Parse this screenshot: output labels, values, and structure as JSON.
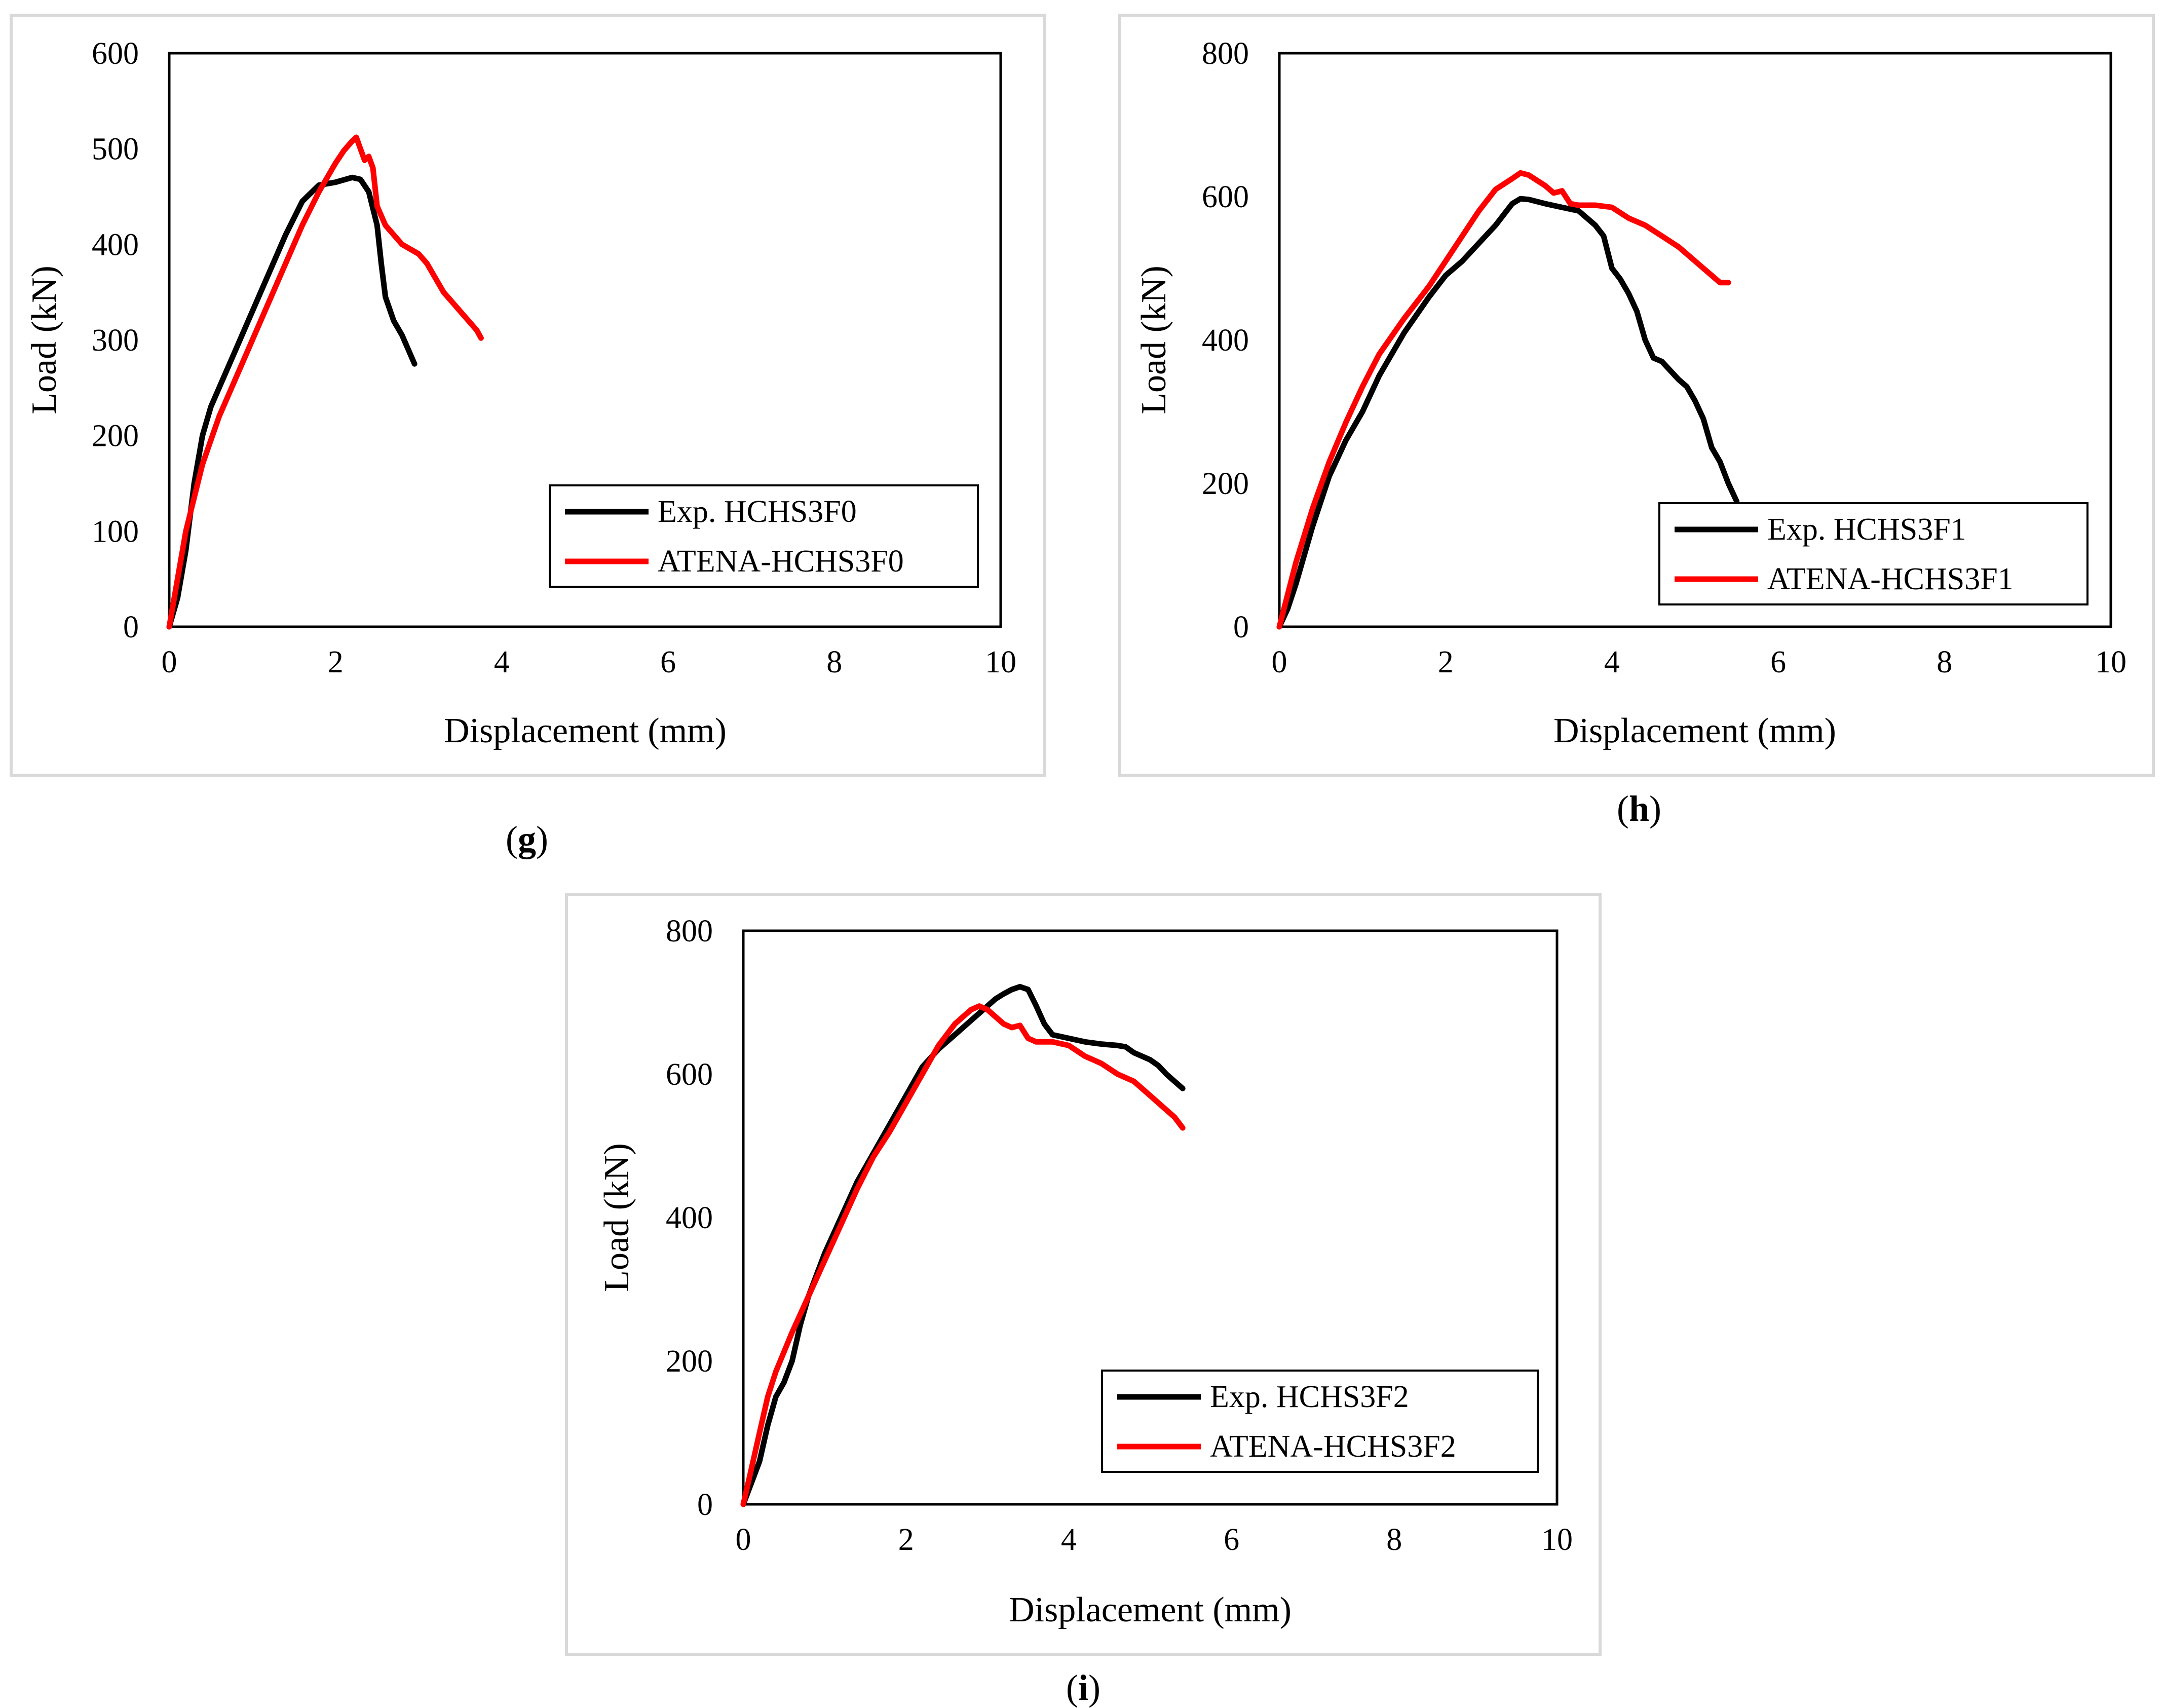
{
  "colors": {
    "exp": "#000000",
    "atena": "#ff0000"
  },
  "captions": {
    "g": {
      "open": "(",
      "letter": "g",
      "close": ")"
    },
    "h": {
      "open": "(",
      "letter": "h",
      "close": ")"
    },
    "i": {
      "open": "(",
      "letter": "i",
      "close": ")"
    }
  },
  "chart_data": [
    {
      "type": "line",
      "panel": "g",
      "xlabel": "Displacement (mm)",
      "ylabel": "Load (kN)",
      "xlim": [
        0,
        10
      ],
      "ylim": [
        0,
        600
      ],
      "xticks": [
        "0",
        "2",
        "4",
        "6",
        "8",
        "10"
      ],
      "yticks": [
        "0",
        "100",
        "200",
        "300",
        "400",
        "500",
        "600"
      ],
      "legend_position": "bottom-right",
      "grid": false,
      "series": [
        {
          "name": "Exp. HCHS3F0",
          "color": "#000000",
          "x": [
            0,
            0.1,
            0.2,
            0.3,
            0.4,
            0.5,
            0.6,
            0.8,
            1.0,
            1.2,
            1.4,
            1.6,
            1.8,
            2.0,
            2.2,
            2.3,
            2.4,
            2.5,
            2.55,
            2.6,
            2.7,
            2.8,
            2.9,
            2.95
          ],
          "y": [
            0,
            30,
            80,
            150,
            200,
            230,
            250,
            290,
            330,
            370,
            410,
            445,
            462,
            465,
            470,
            468,
            455,
            420,
            380,
            345,
            320,
            305,
            285,
            275
          ]
        },
        {
          "name": "ATENA-HCHS3F0",
          "color": "#ff0000",
          "x": [
            0,
            0.2,
            0.4,
            0.6,
            0.8,
            1.0,
            1.2,
            1.4,
            1.6,
            1.8,
            2.0,
            2.1,
            2.2,
            2.25,
            2.3,
            2.35,
            2.4,
            2.45,
            2.5,
            2.6,
            2.8,
            3.0,
            3.1,
            3.2,
            3.3,
            3.4,
            3.5,
            3.6,
            3.7,
            3.75
          ],
          "y": [
            0,
            100,
            170,
            220,
            260,
            300,
            340,
            380,
            420,
            455,
            485,
            498,
            508,
            512,
            500,
            488,
            492,
            480,
            440,
            420,
            400,
            390,
            380,
            365,
            350,
            340,
            330,
            320,
            310,
            302
          ]
        }
      ]
    },
    {
      "type": "line",
      "panel": "h",
      "xlabel": "Displacement (mm)",
      "ylabel": "Load (kN)",
      "xlim": [
        0,
        10
      ],
      "ylim": [
        0,
        800
      ],
      "xticks": [
        "0",
        "2",
        "4",
        "6",
        "8",
        "10"
      ],
      "yticks": [
        "0",
        "200",
        "400",
        "600",
        "800"
      ],
      "legend_position": "bottom-right",
      "grid": false,
      "series": [
        {
          "name": "Exp. HCHS3F1",
          "color": "#000000",
          "x": [
            0,
            0.1,
            0.2,
            0.4,
            0.6,
            0.8,
            1.0,
            1.2,
            1.5,
            1.8,
            2.0,
            2.2,
            2.4,
            2.6,
            2.8,
            2.9,
            3.0,
            3.2,
            3.4,
            3.6,
            3.8,
            3.9,
            4.0,
            4.1,
            4.2,
            4.3,
            4.4,
            4.5,
            4.6,
            4.8,
            4.9,
            5.0,
            5.1,
            5.2,
            5.3,
            5.4,
            5.5
          ],
          "y": [
            0,
            25,
            60,
            140,
            210,
            260,
            300,
            350,
            410,
            460,
            490,
            510,
            535,
            560,
            590,
            597,
            596,
            590,
            585,
            580,
            560,
            545,
            500,
            485,
            465,
            440,
            400,
            375,
            370,
            345,
            335,
            315,
            290,
            250,
            230,
            200,
            175
          ]
        },
        {
          "name": "ATENA-HCHS3F1",
          "color": "#ff0000",
          "x": [
            0,
            0.1,
            0.2,
            0.4,
            0.6,
            0.8,
            1.0,
            1.2,
            1.5,
            1.8,
            2.0,
            2.2,
            2.4,
            2.6,
            2.8,
            2.9,
            3.0,
            3.2,
            3.3,
            3.4,
            3.5,
            3.6,
            3.8,
            4.0,
            4.2,
            4.4,
            4.6,
            4.8,
            4.9,
            5.0,
            5.1,
            5.2,
            5.3,
            5.4
          ],
          "y": [
            0,
            45,
            90,
            165,
            230,
            285,
            335,
            380,
            430,
            475,
            510,
            545,
            580,
            610,
            625,
            633,
            630,
            615,
            605,
            608,
            590,
            588,
            588,
            585,
            570,
            560,
            545,
            530,
            520,
            510,
            500,
            490,
            480,
            480
          ]
        }
      ]
    },
    {
      "type": "line",
      "panel": "i",
      "xlabel": "Displacement (mm)",
      "ylabel": "Load (kN)",
      "xlim": [
        0,
        10
      ],
      "ylim": [
        0,
        800
      ],
      "xticks": [
        "0",
        "2",
        "4",
        "6",
        "8",
        "10"
      ],
      "yticks": [
        "0",
        "200",
        "400",
        "600",
        "800"
      ],
      "legend_position": "bottom-right",
      "grid": false,
      "series": [
        {
          "name": "Exp. HCHS3F2",
          "color": "#000000",
          "x": [
            0,
            0.1,
            0.2,
            0.3,
            0.4,
            0.5,
            0.6,
            0.7,
            0.8,
            1.0,
            1.2,
            1.4,
            1.6,
            1.8,
            2.0,
            2.2,
            2.4,
            2.6,
            2.8,
            3.0,
            3.1,
            3.2,
            3.3,
            3.4,
            3.5,
            3.6,
            3.7,
            3.8,
            4.0,
            4.2,
            4.4,
            4.6,
            4.7,
            4.8,
            5.0,
            5.1,
            5.2,
            5.3,
            5.4
          ],
          "y": [
            0,
            30,
            60,
            110,
            150,
            170,
            200,
            250,
            290,
            350,
            400,
            450,
            490,
            530,
            570,
            610,
            635,
            655,
            675,
            695,
            705,
            712,
            718,
            722,
            718,
            695,
            670,
            655,
            650,
            645,
            642,
            640,
            638,
            630,
            620,
            612,
            600,
            590,
            580
          ]
        },
        {
          "name": "ATENA-HCHS3F2",
          "color": "#ff0000",
          "x": [
            0,
            0.1,
            0.2,
            0.3,
            0.4,
            0.6,
            0.8,
            1.0,
            1.2,
            1.4,
            1.6,
            1.8,
            2.0,
            2.2,
            2.4,
            2.6,
            2.8,
            2.9,
            3.0,
            3.1,
            3.2,
            3.3,
            3.4,
            3.5,
            3.6,
            3.8,
            4.0,
            4.2,
            4.4,
            4.6,
            4.8,
            4.9,
            5.0,
            5.1,
            5.2,
            5.3,
            5.4
          ],
          "y": [
            0,
            50,
            100,
            150,
            185,
            240,
            290,
            340,
            390,
            440,
            485,
            520,
            560,
            600,
            640,
            670,
            690,
            695,
            690,
            680,
            670,
            665,
            668,
            650,
            645,
            645,
            640,
            625,
            615,
            600,
            590,
            580,
            570,
            560,
            550,
            540,
            525
          ]
        }
      ]
    }
  ]
}
